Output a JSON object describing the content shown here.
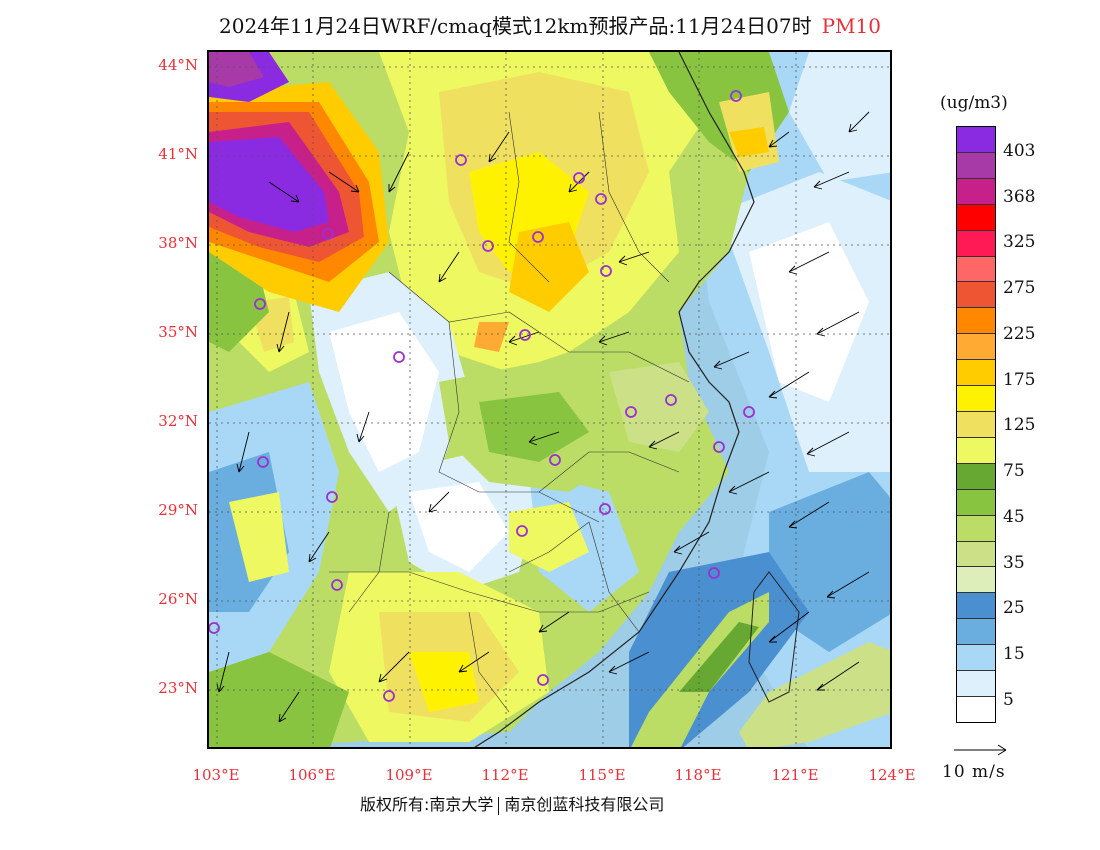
{
  "title": {
    "text": "2024年11月24日WRF/cmaq模式12km预报产品:11月24日07时",
    "pollutant": "PM10",
    "pollutant_color": "#e8303a"
  },
  "map": {
    "lat_labels": [
      "44°N",
      "41°N",
      "38°N",
      "35°N",
      "32°N",
      "29°N",
      "26°N",
      "23°N"
    ],
    "lon_labels": [
      "103°E",
      "106°E",
      "109°E",
      "112°E",
      "115°E",
      "118°E",
      "121°E",
      "124°E"
    ],
    "label_color": "#e8303a",
    "lat_range": [
      21,
      44.5
    ],
    "lon_range": [
      102.7,
      124
    ],
    "city_marker_color": "#9b30d0"
  },
  "legend": {
    "units": "(ug/m3)",
    "colors": [
      "#8a2be2",
      "#a83aa8",
      "#c8208a",
      "#ff0000",
      "#ff1a55",
      "#ff6666",
      "#ee5533",
      "#ff8800",
      "#ffaa33",
      "#ffcc00",
      "#fff200",
      "#f0e060",
      "#eef860",
      "#66a832",
      "#88c440",
      "#bbdd66",
      "#cce088",
      "#ddeebb",
      "#4a8fd0",
      "#6aaee0",
      "#a8d8f5",
      "#ddf0fb",
      "#ffffff"
    ],
    "labels": [
      "403",
      "368",
      "325",
      "275",
      "225",
      "175",
      "125",
      "75",
      "45",
      "35",
      "25",
      "15",
      "5"
    ]
  },
  "wind_reference": {
    "label": "10 m/s"
  },
  "footer": {
    "copyright_prefix": "版权所有:",
    "org1": "南京大学",
    "org2": "南京创蓝科技有限公司"
  }
}
